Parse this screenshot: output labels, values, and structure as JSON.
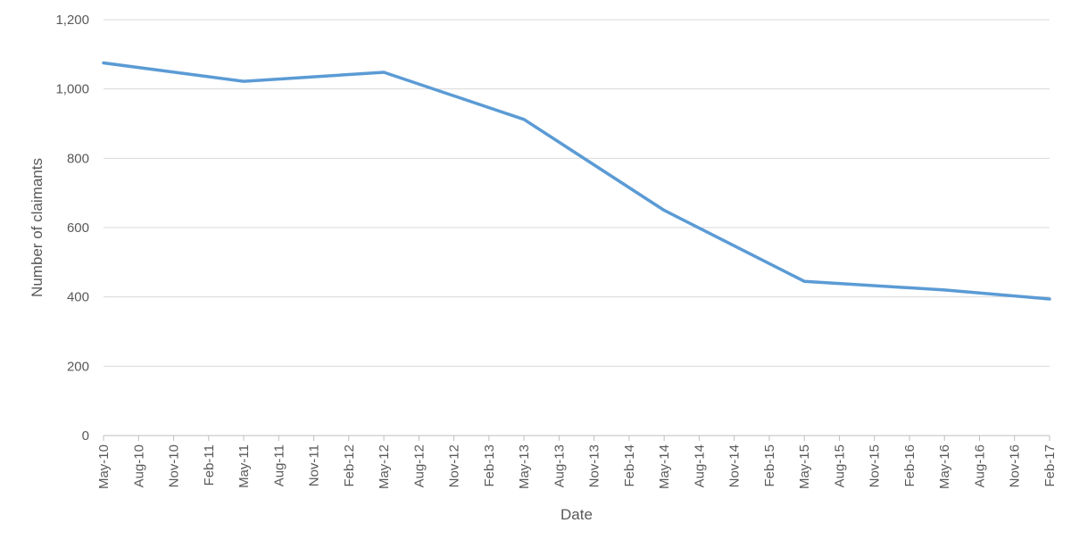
{
  "chart_data": {
    "type": "line",
    "xlabel": "Date",
    "ylabel": "Number of claimants",
    "ylim": [
      0,
      1200
    ],
    "yticks": [
      "0",
      "200",
      "400",
      "600",
      "800",
      "1,000",
      "1,200"
    ],
    "ytick_values": [
      0,
      200,
      400,
      600,
      800,
      1000,
      1200
    ],
    "categories": [
      "May-10",
      "Aug-10",
      "Nov-10",
      "Feb-11",
      "May-11",
      "Aug-11",
      "Nov-11",
      "Feb-12",
      "May-12",
      "Aug-12",
      "Nov-12",
      "Feb-13",
      "May-13",
      "Aug-13",
      "Nov-13",
      "Feb-14",
      "May-14",
      "Aug-14",
      "Nov-14",
      "Feb-15",
      "May-15",
      "Aug-15",
      "Nov-15",
      "Feb-16",
      "May-16",
      "Aug-16",
      "Nov-16",
      "Feb-17"
    ],
    "series": [
      {
        "color": "#5b9bd5",
        "x": [
          "May-10",
          "May-11",
          "May-12",
          "May-13",
          "May-14",
          "May-15",
          "May-16",
          "Feb-17"
        ],
        "values": [
          1075,
          1022,
          1048,
          912,
          650,
          445,
          420,
          394
        ]
      }
    ],
    "grid": true,
    "legend": "none"
  }
}
